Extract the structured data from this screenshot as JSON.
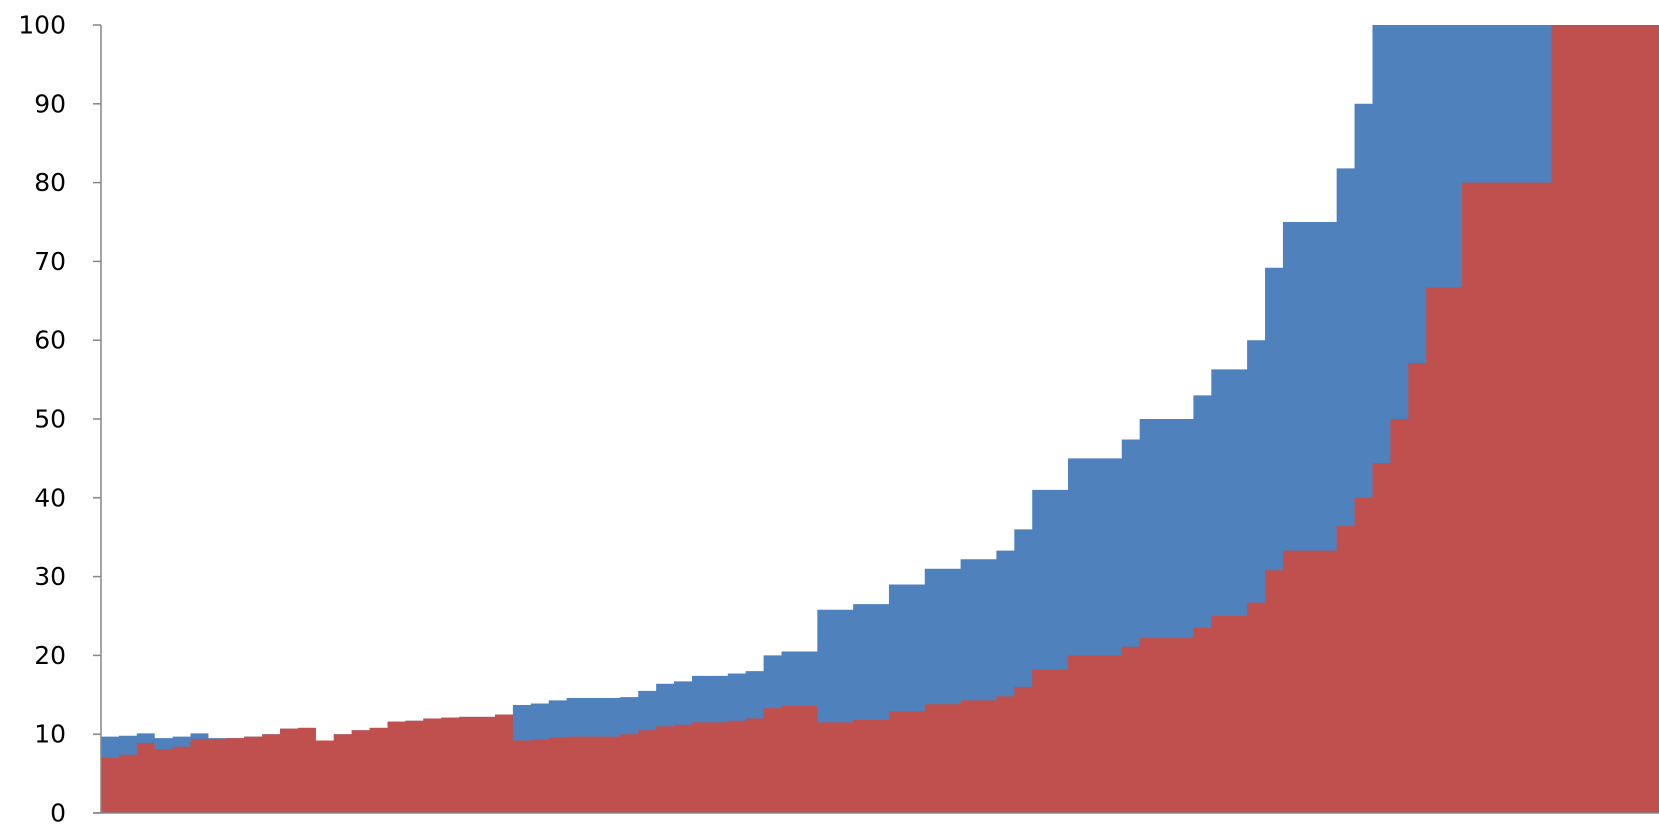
{
  "chart_data": {
    "type": "area",
    "y_axis": {
      "min": 0,
      "max": 100,
      "ticks": [
        0,
        10,
        20,
        30,
        40,
        50,
        60,
        70,
        80,
        90,
        100
      ]
    },
    "x_axis": {
      "min": 0,
      "max": 87,
      "tick_labels_shown": false
    },
    "grid": false,
    "legend": "none",
    "colors": {
      "upper": "#4f81bd",
      "lower": "#c0504d",
      "axis": "#868686"
    },
    "series": [
      {
        "values": [
          9.7,
          9.8,
          10.1,
          9.5,
          9.7,
          10.1,
          9.5,
          9.5,
          9.7,
          10.0,
          10.7,
          10.8,
          9.2,
          10.0,
          10.5,
          10.8,
          11.6,
          11.7,
          12.0,
          12.1,
          12.2,
          12.2,
          12.5,
          13.7,
          13.9,
          14.3,
          14.6,
          14.6,
          14.6,
          14.7,
          15.5,
          16.4,
          16.7,
          17.4,
          17.4,
          17.7,
          18.0,
          20.0,
          20.5,
          20.5,
          25.8,
          25.8,
          26.5,
          26.5,
          29.0,
          29.0,
          31.0,
          31.0,
          32.2,
          32.2,
          33.3,
          36.0,
          41.0,
          41.0,
          45.0,
          45.0,
          45.0,
          47.4,
          50.0,
          50.0,
          50.0,
          53.0,
          56.3,
          56.3,
          60.0,
          69.2,
          75.0,
          75.0,
          75.0,
          81.8,
          90.0,
          100,
          100,
          100,
          100,
          100,
          100,
          100,
          100,
          100,
          100,
          100,
          100,
          100,
          100,
          100,
          100
        ]
      },
      {
        "values": [
          7.0,
          7.4,
          8.9,
          8.1,
          8.4,
          9.4,
          9.4,
          9.5,
          9.7,
          10.0,
          10.7,
          10.8,
          9.2,
          10.0,
          10.5,
          10.8,
          11.6,
          11.7,
          12.0,
          12.1,
          12.2,
          12.2,
          12.5,
          9.2,
          9.3,
          9.6,
          9.7,
          9.7,
          9.7,
          10.0,
          10.5,
          11.0,
          11.2,
          11.5,
          11.5,
          11.7,
          12.0,
          13.3,
          13.6,
          13.6,
          11.5,
          11.5,
          11.8,
          11.8,
          12.9,
          12.9,
          13.8,
          13.8,
          14.3,
          14.3,
          14.8,
          16.0,
          18.2,
          18.2,
          20.0,
          20.0,
          20.0,
          21.1,
          22.2,
          22.2,
          22.2,
          23.5,
          25.0,
          25.0,
          26.7,
          30.8,
          33.3,
          33.3,
          33.3,
          36.4,
          40.0,
          44.4,
          50.0,
          57.1,
          66.7,
          66.7,
          80.0,
          80.0,
          80.0,
          80.0,
          80.0,
          100,
          100,
          100,
          100,
          100,
          100
        ]
      }
    ]
  }
}
